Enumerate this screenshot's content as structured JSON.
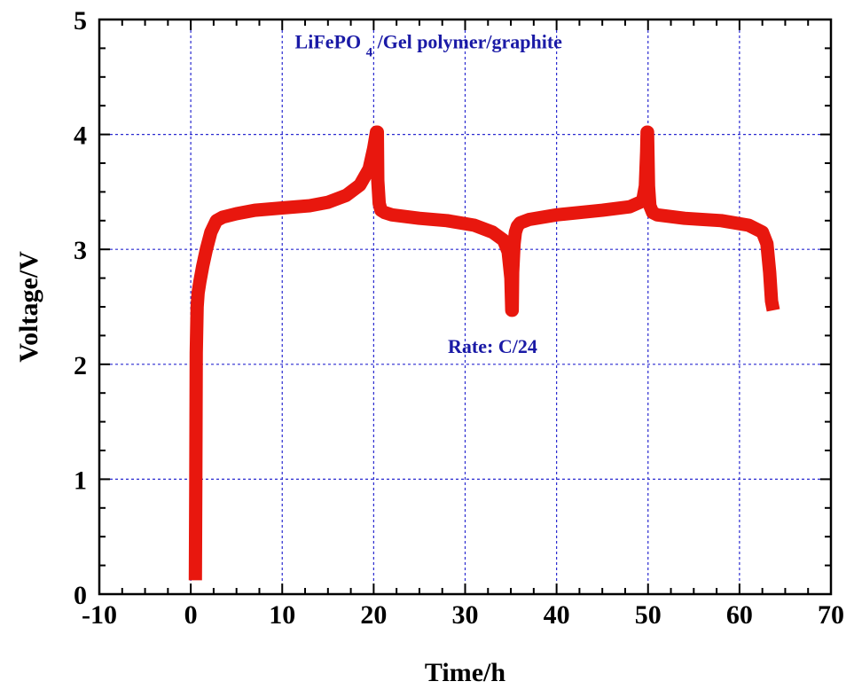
{
  "chart_data": {
    "type": "line",
    "xlabel": "Time/h",
    "ylabel": "Voltage/V",
    "xlim": [
      -10,
      70
    ],
    "ylim": [
      0,
      5
    ],
    "xticks": [
      -10,
      0,
      10,
      20,
      30,
      40,
      50,
      60,
      70
    ],
    "yticks": [
      0,
      1,
      2,
      3,
      4,
      5
    ],
    "grid": true,
    "annotations": [
      {
        "text_main": "LiFePO",
        "text_sub": "4",
        "text_rest": "/Gel polymer/graphite",
        "x": 26,
        "y": 4.75
      },
      {
        "text": "Rate: C/24",
        "x": 33,
        "y": 2.1
      }
    ],
    "colors": {
      "series": "#e8170e",
      "annotation": "#1a1aa6",
      "grid": "#2a2ad0"
    },
    "series": [
      {
        "x": [
          0.5,
          0.55,
          0.6,
          0.7,
          0.8,
          1.0,
          1.3,
          1.7,
          2.2,
          2.8,
          3.5,
          5,
          7,
          10,
          13,
          15,
          17,
          18.5,
          19.5,
          20,
          20.3,
          20.4,
          20.45,
          20.6,
          20.8,
          21.2,
          22,
          25,
          28,
          31,
          33,
          34.2,
          34.7,
          35,
          35.1,
          35.15,
          35.2,
          35.35,
          35.5,
          35.7,
          36,
          37,
          40,
          45,
          48,
          49.4,
          49.7,
          49.85,
          49.9,
          49.95,
          50.05,
          50.2,
          50.5,
          51,
          54,
          58,
          61,
          62.5,
          63,
          63.3,
          63.5,
          63.7
        ],
        "y": [
          0.12,
          1.0,
          2.1,
          2.5,
          2.62,
          2.72,
          2.85,
          3.0,
          3.15,
          3.25,
          3.28,
          3.31,
          3.34,
          3.36,
          3.38,
          3.41,
          3.47,
          3.56,
          3.7,
          3.88,
          4.02,
          4.02,
          3.6,
          3.4,
          3.34,
          3.32,
          3.3,
          3.27,
          3.25,
          3.21,
          3.15,
          3.08,
          2.98,
          2.75,
          2.47,
          2.47,
          2.8,
          3.05,
          3.15,
          3.2,
          3.23,
          3.26,
          3.3,
          3.34,
          3.37,
          3.42,
          3.55,
          3.85,
          4.02,
          4.02,
          3.55,
          3.38,
          3.32,
          3.3,
          3.27,
          3.25,
          3.21,
          3.15,
          3.05,
          2.8,
          2.55,
          2.47
        ]
      }
    ]
  }
}
